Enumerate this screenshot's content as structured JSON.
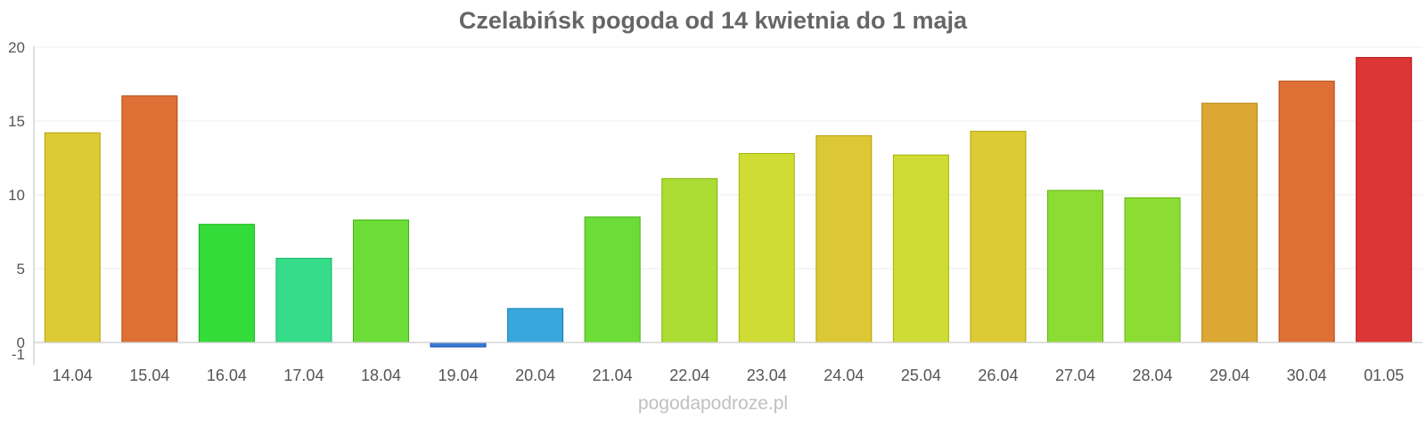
{
  "chart_data": {
    "type": "bar",
    "title": "Czelabińsk pogoda od 14 kwietnia do 1 maja",
    "categories": [
      "14.04",
      "15.04",
      "16.04",
      "17.04",
      "18.04",
      "19.04",
      "20.04",
      "21.04",
      "22.04",
      "23.04",
      "24.04",
      "25.04",
      "26.04",
      "27.04",
      "28.04",
      "29.04",
      "30.04",
      "01.05"
    ],
    "values": [
      14.2,
      16.7,
      8.0,
      5.7,
      8.3,
      -0.3,
      2.3,
      8.5,
      11.1,
      12.8,
      14.0,
      12.7,
      14.3,
      10.3,
      9.8,
      16.2,
      17.7,
      19.3
    ],
    "colors": [
      "#dccb34",
      "#de7036",
      "#34dc3a",
      "#36dc8a",
      "#6cdc38",
      "#3a7ad6",
      "#38a8dc",
      "#6cdc38",
      "#aadc34",
      "#cedc34",
      "#dcc834",
      "#cedc34",
      "#dccb34",
      "#8cdc34",
      "#8cdc34",
      "#dca834",
      "#de7036",
      "#dc3636"
    ],
    "yticks": [
      "20",
      "15",
      "10",
      "5",
      "0",
      "-1"
    ],
    "ylim": [
      -1,
      20
    ],
    "grid": true,
    "legend": "none",
    "credit": "pogodapodroze.pl"
  }
}
